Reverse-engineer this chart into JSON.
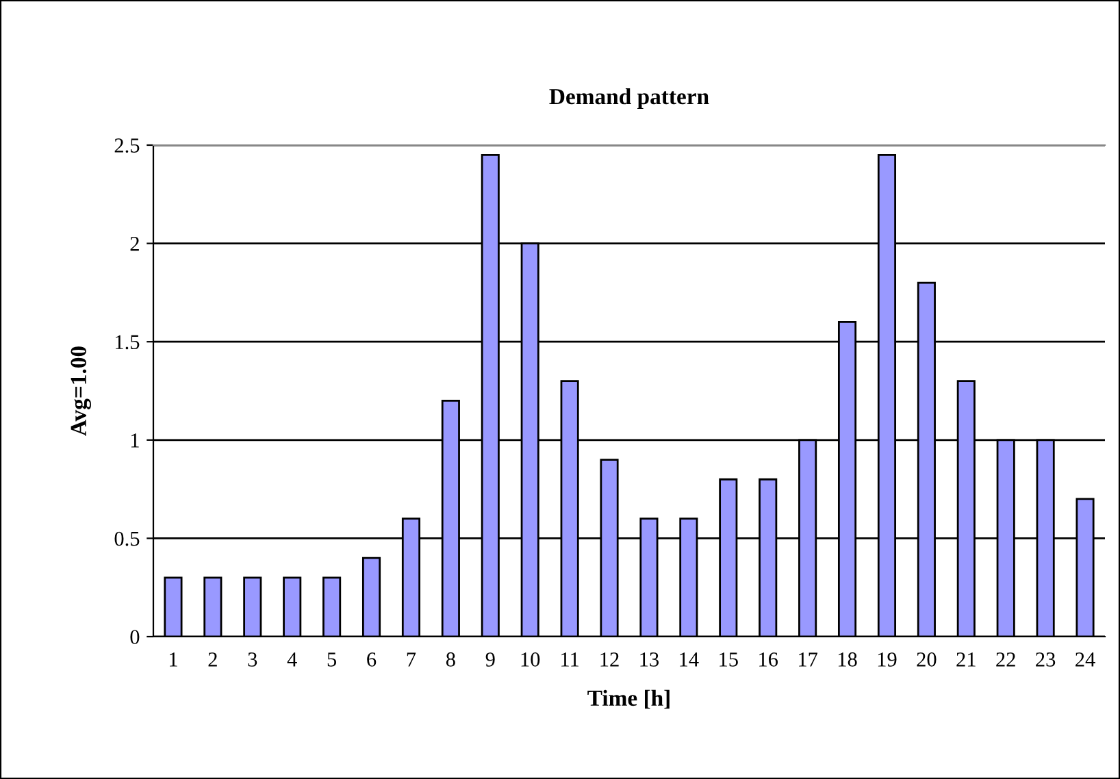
{
  "chart_data": {
    "type": "bar",
    "title": "Demand pattern",
    "xlabel": "Time [h]",
    "ylabel": "Avg=1.00",
    "categories": [
      "1",
      "2",
      "3",
      "4",
      "5",
      "6",
      "7",
      "8",
      "9",
      "10",
      "11",
      "12",
      "13",
      "14",
      "15",
      "16",
      "17",
      "18",
      "19",
      "20",
      "21",
      "22",
      "23",
      "24"
    ],
    "values": [
      0.3,
      0.3,
      0.3,
      0.3,
      0.3,
      0.4,
      0.6,
      1.2,
      2.45,
      2.0,
      1.3,
      0.9,
      0.6,
      0.6,
      0.8,
      0.8,
      1.0,
      1.6,
      2.45,
      1.8,
      1.3,
      1.0,
      1.0,
      0.7
    ],
    "color": "#9999ff",
    "ylim": [
      0,
      2.5
    ],
    "yticks": [
      0,
      0.5,
      1,
      1.5,
      2,
      2.5
    ],
    "grid": "y"
  }
}
